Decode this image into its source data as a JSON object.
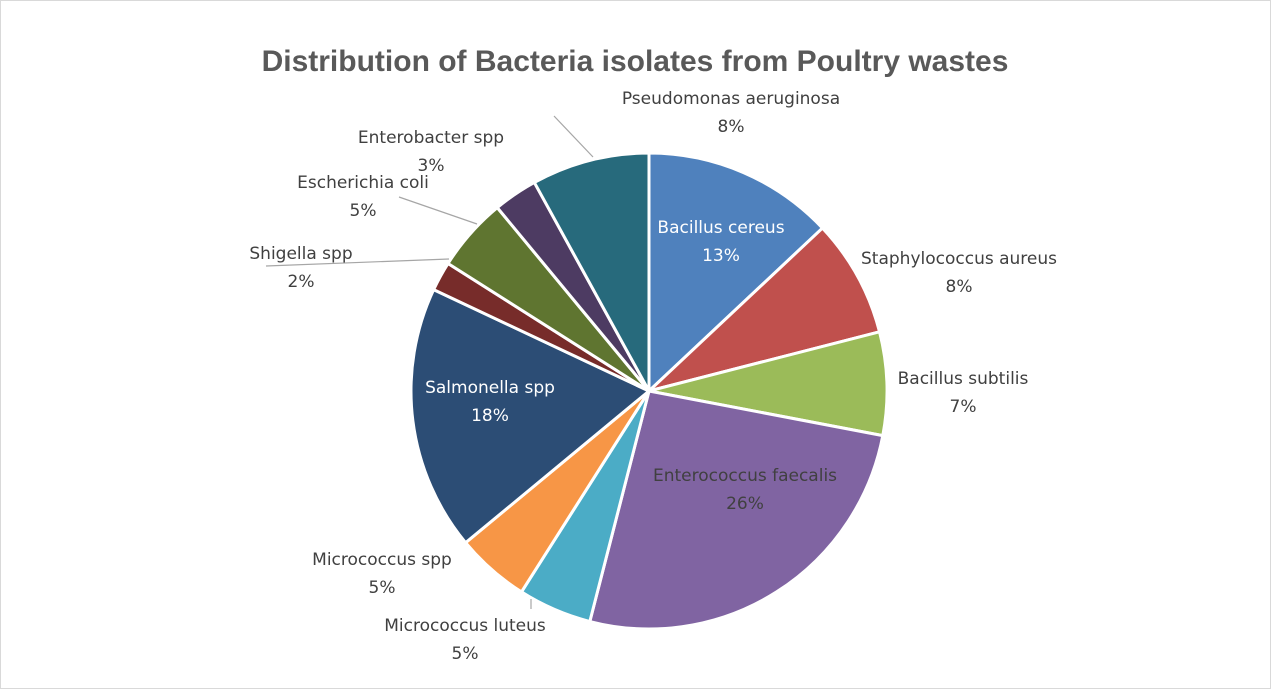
{
  "chart_data": {
    "type": "pie",
    "title": "Distribution of Bacteria isolates from Poultry wastes",
    "slices": [
      {
        "name": "Bacillus cereus",
        "value": 13,
        "label": "13%",
        "color": "#4F81BD"
      },
      {
        "name": "Staphylococcus aureus",
        "value": 8,
        "label": "8%",
        "color": "#C0504D"
      },
      {
        "name": "Bacillus subtilis",
        "value": 7,
        "label": "7%",
        "color": "#9BBB59"
      },
      {
        "name": "Enterococcus faecalis",
        "value": 26,
        "label": "26%",
        "color": "#8064A2"
      },
      {
        "name": "Micrococcus luteus",
        "value": 5,
        "label": "5%",
        "color": "#4BACC6"
      },
      {
        "name": "Micrococcus spp",
        "value": 5,
        "label": "5%",
        "color": "#F79646"
      },
      {
        "name": "Salmonella spp",
        "value": 18,
        "label": "18%",
        "color": "#2C4D75"
      },
      {
        "name": "Shigella spp",
        "value": 2,
        "label": "2%",
        "color": "#772C2A"
      },
      {
        "name": "Escherichia coli",
        "value": 5,
        "label": "5%",
        "color": "#5F7530"
      },
      {
        "name": "Enterobacter spp",
        "value": 3,
        "label": "3%",
        "color": "#4D3B62"
      },
      {
        "name": "Pseudomonas aeruginosa",
        "value": 8,
        "label": "8%",
        "color": "#276A7C"
      }
    ],
    "legend": "none"
  }
}
